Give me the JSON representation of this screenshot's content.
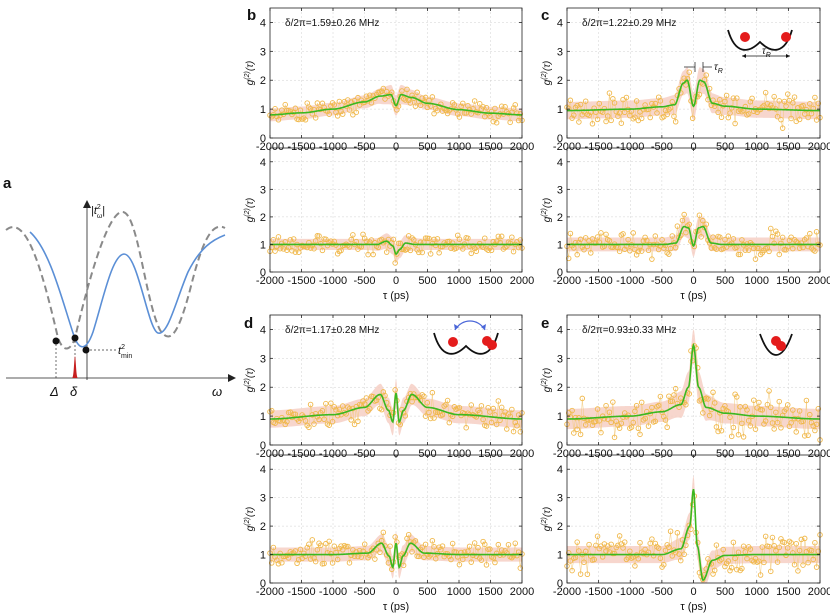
{
  "panel_a": {
    "label": "a",
    "y_axis_label": "|t",
    "y_axis_sup": "2",
    "y_axis_sub": "ω",
    "y_axis_close": "|",
    "x_axis_label": "ω",
    "delta_cap": "Δ",
    "delta_small": "δ",
    "t_min_label": "t",
    "t_min_sup": "2",
    "t_min_sub": "min"
  },
  "inset_labels": {
    "tau": "τ",
    "sub_R": "R"
  },
  "chart_data": [
    {
      "id": "b-top",
      "panel_label": "b",
      "type": "line",
      "title": "δ/2π=1.59±0.26 MHz",
      "xlabel": "",
      "ylabel": "g(2)(τ)",
      "xlim": [
        -2000,
        2000
      ],
      "ylim": [
        0,
        4.5
      ],
      "xticks": [
        -2000,
        -1500,
        -1000,
        -500,
        0,
        500,
        1000,
        1500,
        2000
      ],
      "xtick_labels": [
        "-2000",
        "-1500",
        "-1000",
        "-500",
        "0",
        "500",
        "1000",
        "1500",
        "2000"
      ],
      "yticks": [
        0,
        1,
        2,
        3,
        4
      ],
      "ytick_labels": [
        "0",
        "1",
        "2",
        "3",
        "4"
      ],
      "series": [
        {
          "name": "fit",
          "x": [
            -2000,
            -1500,
            -1000,
            -500,
            -250,
            -80,
            0,
            80,
            250,
            500,
            1000,
            1500,
            2000
          ],
          "y": [
            0.8,
            0.87,
            1.0,
            1.25,
            1.45,
            1.5,
            1.12,
            1.5,
            1.4,
            1.2,
            0.98,
            0.86,
            0.8
          ]
        }
      ],
      "band_halfwidth": 0.22,
      "data_scatter": 0.25,
      "inset": null
    },
    {
      "id": "b-bottom",
      "panel_label": "",
      "type": "line",
      "title": "",
      "xlabel": "τ (ps)",
      "ylabel": "g(2)(τ)",
      "xlim": [
        -2000,
        2000
      ],
      "ylim": [
        0,
        4.5
      ],
      "xticks": [
        -2000,
        -1500,
        -1000,
        -500,
        0,
        500,
        1000,
        1500,
        2000
      ],
      "xtick_labels": [
        "-2000",
        "-1500",
        "-1000",
        "-500",
        "0",
        "500",
        "1000",
        "1500",
        "2000"
      ],
      "yticks": [
        0,
        1,
        2,
        3,
        4
      ],
      "ytick_labels": [
        "0",
        "1",
        "2",
        "3",
        "4"
      ],
      "series": [
        {
          "name": "fit",
          "x": [
            -2000,
            -1000,
            -300,
            -150,
            -50,
            0,
            60,
            150,
            300,
            1000,
            2000
          ],
          "y": [
            1.0,
            1.0,
            1.0,
            1.12,
            0.95,
            0.65,
            0.82,
            1.05,
            1.0,
            1.0,
            1.0
          ]
        }
      ],
      "band_halfwidth": 0.2,
      "data_scatter": 0.3,
      "inset": null
    },
    {
      "id": "c-top",
      "panel_label": "c",
      "type": "line",
      "title": "δ/2π=1.22±0.29 MHz",
      "xlabel": "",
      "ylabel": "g(2)(τ)",
      "xlim": [
        -2000,
        2000
      ],
      "ylim": [
        0,
        4.5
      ],
      "xticks": [
        -2000,
        -1500,
        -1000,
        -500,
        0,
        500,
        1000,
        1500,
        2000
      ],
      "xtick_labels": [
        "-2000",
        "-1500",
        "-1000",
        "-500",
        "0",
        "500",
        "1000",
        "1500",
        "2000"
      ],
      "yticks": [
        0,
        1,
        2,
        3,
        4
      ],
      "ytick_labels": [
        "0",
        "1",
        "2",
        "3",
        "4"
      ],
      "series": [
        {
          "name": "fit",
          "x": [
            -2000,
            -1000,
            -500,
            -300,
            -160,
            -100,
            0,
            100,
            160,
            300,
            500,
            1000,
            2000
          ],
          "y": [
            0.95,
            1.0,
            1.08,
            1.15,
            1.9,
            2.0,
            1.1,
            2.0,
            1.95,
            1.2,
            1.1,
            1.0,
            0.95
          ]
        }
      ],
      "band_halfwidth": 0.3,
      "data_scatter": 0.4,
      "inset": "two-wells-separated"
    },
    {
      "id": "c-bottom",
      "panel_label": "",
      "type": "line",
      "title": "",
      "xlabel": "τ (ps)",
      "ylabel": "g(2)(τ)",
      "xlim": [
        -2000,
        2000
      ],
      "ylim": [
        0,
        4.5
      ],
      "xticks": [
        -2000,
        -1500,
        -1000,
        -500,
        0,
        500,
        1000,
        1500,
        2000
      ],
      "xtick_labels": [
        "-2000",
        "-1500",
        "-1000",
        "-500",
        "0",
        "500",
        "1000",
        "1500",
        "2000"
      ],
      "yticks": [
        0,
        1,
        2,
        3,
        4
      ],
      "ytick_labels": [
        "0",
        "1",
        "2",
        "3",
        "4"
      ],
      "series": [
        {
          "name": "fit",
          "x": [
            -2000,
            -1000,
            -450,
            -280,
            -150,
            -80,
            0,
            80,
            150,
            280,
            450,
            1000,
            2000
          ],
          "y": [
            1.0,
            1.0,
            1.0,
            1.05,
            1.65,
            1.6,
            0.95,
            1.6,
            1.65,
            1.05,
            1.0,
            1.0,
            1.0
          ]
        }
      ],
      "band_halfwidth": 0.25,
      "data_scatter": 0.35,
      "inset": null
    },
    {
      "id": "d-top",
      "panel_label": "d",
      "type": "line",
      "title": "δ/2π=1.17±0.28 MHz",
      "xlabel": "",
      "ylabel": "g(2)(τ)",
      "xlim": [
        -2000,
        2000
      ],
      "ylim": [
        0,
        4.5
      ],
      "xticks": [
        -2000,
        -1500,
        -1000,
        -500,
        0,
        500,
        1000,
        1500,
        2000
      ],
      "xtick_labels": [
        "-2000",
        "-1500",
        "-1000",
        "-500",
        "0",
        "500",
        "1000",
        "1500",
        "2000"
      ],
      "yticks": [
        0,
        1,
        2,
        3,
        4
      ],
      "ytick_labels": [
        "0",
        "1",
        "2",
        "3",
        "4"
      ],
      "series": [
        {
          "name": "fit",
          "x": [
            -2000,
            -1000,
            -500,
            -250,
            -120,
            -50,
            0,
            50,
            120,
            250,
            500,
            1000,
            2000
          ],
          "y": [
            0.9,
            1.05,
            1.3,
            1.75,
            1.2,
            0.8,
            1.8,
            0.8,
            1.2,
            1.75,
            1.3,
            1.05,
            0.9
          ]
        }
      ],
      "band_halfwidth": 0.3,
      "data_scatter": 0.4,
      "inset": "two-wells-hopping"
    },
    {
      "id": "d-bottom",
      "panel_label": "",
      "type": "line",
      "title": "",
      "xlabel": "τ (ps)",
      "ylabel": "g(2)(τ)",
      "xlim": [
        -2000,
        2000
      ],
      "ylim": [
        0,
        4.5
      ],
      "xticks": [
        -2000,
        -1500,
        -1000,
        -500,
        0,
        500,
        1000,
        1500,
        2000
      ],
      "xtick_labels": [
        "-2000",
        "-1500",
        "-1000",
        "-500",
        "0",
        "500",
        "1000",
        "1500",
        "2000"
      ],
      "yticks": [
        0,
        1,
        2,
        3,
        4
      ],
      "ytick_labels": [
        "0",
        "1",
        "2",
        "3",
        "4"
      ],
      "series": [
        {
          "name": "fit",
          "x": [
            -2000,
            -1000,
            -450,
            -230,
            -110,
            -50,
            0,
            50,
            110,
            230,
            450,
            1000,
            2000
          ],
          "y": [
            1.0,
            1.0,
            1.05,
            1.4,
            0.95,
            0.55,
            1.4,
            0.55,
            0.95,
            1.4,
            1.05,
            1.0,
            1.0
          ]
        }
      ],
      "band_halfwidth": 0.25,
      "data_scatter": 0.35,
      "inset": null
    },
    {
      "id": "e-top",
      "panel_label": "e",
      "type": "line",
      "title": "δ/2π=0.93±0.33 MHz",
      "xlabel": "",
      "ylabel": "g(2)(τ)",
      "xlim": [
        -2000,
        2000
      ],
      "ylim": [
        0,
        4.5
      ],
      "xticks": [
        -2000,
        -1500,
        -1000,
        -500,
        0,
        500,
        1000,
        1500,
        2000
      ],
      "xtick_labels": [
        "-2000",
        "-1500",
        "-1000",
        "-500",
        "0",
        "500",
        "1000",
        "1500",
        "2000"
      ],
      "yticks": [
        0,
        1,
        2,
        3,
        4
      ],
      "ytick_labels": [
        "0",
        "1",
        "2",
        "3",
        "4"
      ],
      "series": [
        {
          "name": "fit",
          "x": [
            -2000,
            -1000,
            -500,
            -200,
            -80,
            0,
            80,
            200,
            500,
            1000,
            2000
          ],
          "y": [
            0.9,
            1.0,
            1.15,
            1.4,
            2.0,
            3.45,
            2.0,
            1.3,
            1.1,
            1.0,
            0.9
          ]
        }
      ],
      "band_halfwidth": 0.35,
      "data_scatter": 0.55,
      "inset": "one-well-overlap"
    },
    {
      "id": "e-bottom",
      "panel_label": "",
      "type": "line",
      "title": "",
      "xlabel": "τ (ps)",
      "ylabel": "g(2)(τ)",
      "xlim": [
        -2000,
        2000
      ],
      "ylim": [
        0,
        4.5
      ],
      "xticks": [
        -2000,
        -1500,
        -1000,
        -500,
        0,
        500,
        1000,
        1500,
        2000
      ],
      "xtick_labels": [
        "-2000",
        "-1500",
        "-1000",
        "-500",
        "0",
        "500",
        "1000",
        "1500",
        "2000"
      ],
      "yticks": [
        0,
        1,
        2,
        3,
        4
      ],
      "ytick_labels": [
        "0",
        "1",
        "2",
        "3",
        "4"
      ],
      "series": [
        {
          "name": "fit",
          "x": [
            -2000,
            -1000,
            -500,
            -200,
            -60,
            0,
            60,
            150,
            300,
            500,
            1000,
            2000
          ],
          "y": [
            1.0,
            1.0,
            1.0,
            1.2,
            2.0,
            3.3,
            1.3,
            0.1,
            0.8,
            0.97,
            1.0,
            1.0
          ]
        }
      ],
      "band_halfwidth": 0.3,
      "data_scatter": 0.5,
      "inset": null
    }
  ]
}
